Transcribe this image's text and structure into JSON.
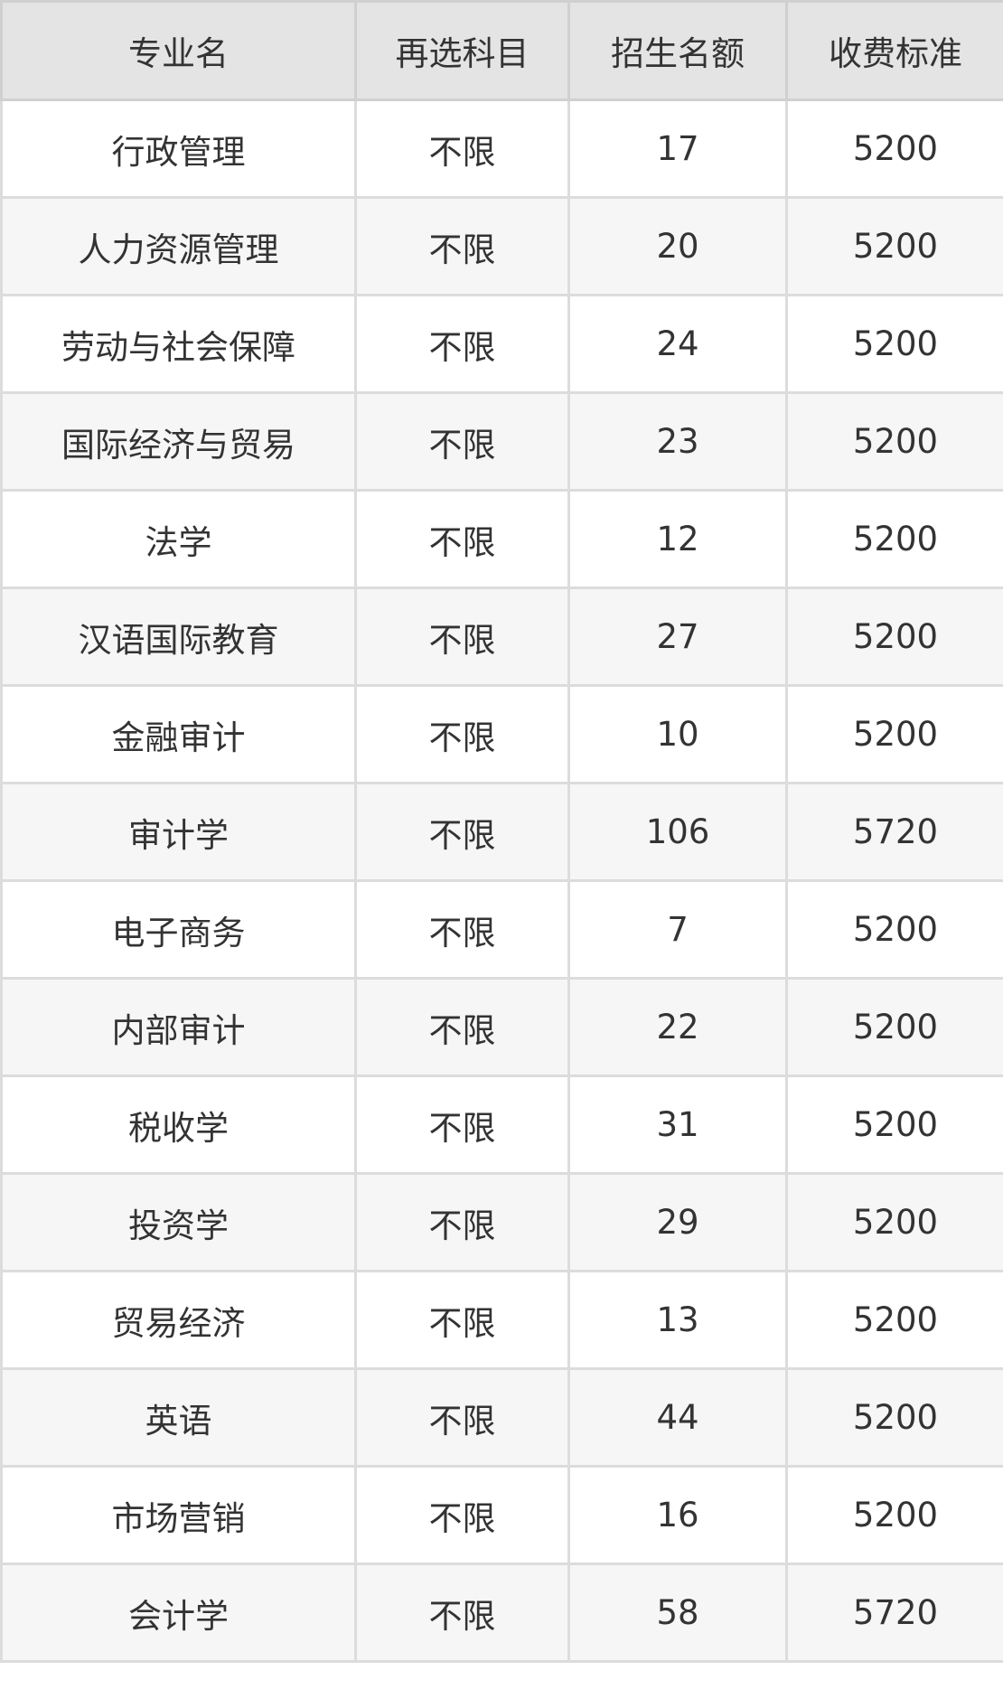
{
  "table": {
    "headers": [
      "专业名",
      "再选科目",
      "招生名额",
      "收费标准"
    ],
    "rows": [
      [
        "行政管理",
        "不限",
        "17",
        "5200"
      ],
      [
        "人力资源管理",
        "不限",
        "20",
        "5200"
      ],
      [
        "劳动与社会保障",
        "不限",
        "24",
        "5200"
      ],
      [
        "国际经济与贸易",
        "不限",
        "23",
        "5200"
      ],
      [
        "法学",
        "不限",
        "12",
        "5200"
      ],
      [
        "汉语国际教育",
        "不限",
        "27",
        "5200"
      ],
      [
        "金融审计",
        "不限",
        "10",
        "5200"
      ],
      [
        "审计学",
        "不限",
        "106",
        "5720"
      ],
      [
        "电子商务",
        "不限",
        "7",
        "5200"
      ],
      [
        "内部审计",
        "不限",
        "22",
        "5200"
      ],
      [
        "税收学",
        "不限",
        "31",
        "5200"
      ],
      [
        "投资学",
        "不限",
        "29",
        "5200"
      ],
      [
        "贸易经济",
        "不限",
        "13",
        "5200"
      ],
      [
        "英语",
        "不限",
        "44",
        "5200"
      ],
      [
        "市场营销",
        "不限",
        "16",
        "5200"
      ],
      [
        "会计学",
        "不限",
        "58",
        "5720"
      ]
    ]
  }
}
